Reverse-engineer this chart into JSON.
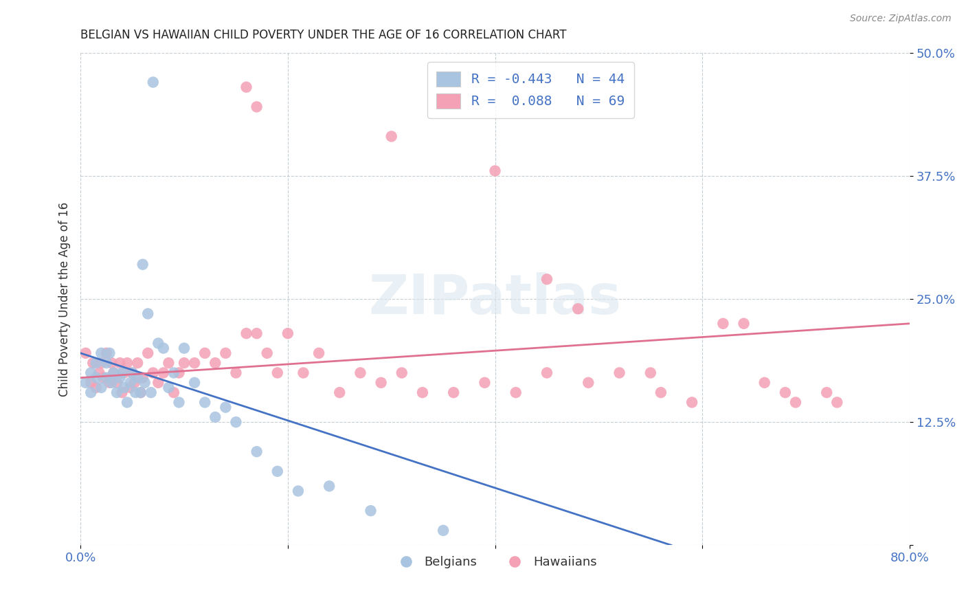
{
  "title": "BELGIAN VS HAWAIIAN CHILD POVERTY UNDER THE AGE OF 16 CORRELATION CHART",
  "source": "Source: ZipAtlas.com",
  "ylabel": "Child Poverty Under the Age of 16",
  "xlim": [
    0.0,
    0.8
  ],
  "ylim": [
    0.0,
    0.5
  ],
  "xticks": [
    0.0,
    0.2,
    0.4,
    0.6,
    0.8
  ],
  "xticklabels": [
    "0.0%",
    "",
    "",
    "",
    "80.0%"
  ],
  "yticks": [
    0.0,
    0.125,
    0.25,
    0.375,
    0.5
  ],
  "yticklabels": [
    "",
    "12.5%",
    "25.0%",
    "37.5%",
    "50.0%"
  ],
  "color_belgian": "#a8c4e0",
  "color_hawaiian": "#f4a0b5",
  "line_color_belgian": "#4472c4",
  "line_color_hawaiian": "#e07090",
  "watermark": "ZIPatlas",
  "belgian_line_x": [
    0.0,
    0.57
  ],
  "belgian_line_y": [
    0.195,
    0.0
  ],
  "hawaiian_line_x": [
    0.0,
    0.8
  ],
  "hawaiian_line_y": [
    0.17,
    0.225
  ],
  "belgian_x": [
    0.005,
    0.01,
    0.01,
    0.015,
    0.015,
    0.02,
    0.02,
    0.025,
    0.025,
    0.028,
    0.03,
    0.032,
    0.035,
    0.038,
    0.04,
    0.042,
    0.045,
    0.048,
    0.05,
    0.053,
    0.055,
    0.058,
    0.06,
    0.062,
    0.065,
    0.068,
    0.07,
    0.075,
    0.08,
    0.085,
    0.09,
    0.095,
    0.1,
    0.11,
    0.12,
    0.13,
    0.14,
    0.15,
    0.17,
    0.19,
    0.21,
    0.24,
    0.28,
    0.35
  ],
  "belgian_y": [
    0.165,
    0.155,
    0.175,
    0.185,
    0.17,
    0.195,
    0.16,
    0.185,
    0.17,
    0.195,
    0.165,
    0.175,
    0.155,
    0.17,
    0.175,
    0.16,
    0.145,
    0.165,
    0.175,
    0.155,
    0.17,
    0.155,
    0.285,
    0.165,
    0.235,
    0.155,
    0.47,
    0.205,
    0.2,
    0.16,
    0.175,
    0.145,
    0.2,
    0.165,
    0.145,
    0.13,
    0.14,
    0.125,
    0.095,
    0.075,
    0.055,
    0.06,
    0.035,
    0.015
  ],
  "hawaiian_x": [
    0.005,
    0.01,
    0.012,
    0.015,
    0.018,
    0.02,
    0.022,
    0.025,
    0.028,
    0.03,
    0.032,
    0.035,
    0.038,
    0.04,
    0.042,
    0.045,
    0.048,
    0.05,
    0.052,
    0.055,
    0.058,
    0.06,
    0.065,
    0.07,
    0.075,
    0.08,
    0.085,
    0.09,
    0.095,
    0.1,
    0.11,
    0.12,
    0.13,
    0.14,
    0.15,
    0.16,
    0.17,
    0.18,
    0.19,
    0.2,
    0.215,
    0.23,
    0.25,
    0.27,
    0.29,
    0.31,
    0.33,
    0.36,
    0.39,
    0.42,
    0.45,
    0.49,
    0.52,
    0.56,
    0.59,
    0.62,
    0.64,
    0.66,
    0.69,
    0.72,
    0.16,
    0.17,
    0.3,
    0.4,
    0.45,
    0.48,
    0.55,
    0.68,
    0.73
  ],
  "hawaiian_y": [
    0.195,
    0.165,
    0.185,
    0.16,
    0.175,
    0.185,
    0.17,
    0.195,
    0.165,
    0.185,
    0.175,
    0.165,
    0.185,
    0.155,
    0.175,
    0.185,
    0.16,
    0.175,
    0.165,
    0.185,
    0.155,
    0.17,
    0.195,
    0.175,
    0.165,
    0.175,
    0.185,
    0.155,
    0.175,
    0.185,
    0.185,
    0.195,
    0.185,
    0.195,
    0.175,
    0.215,
    0.215,
    0.195,
    0.175,
    0.215,
    0.175,
    0.195,
    0.155,
    0.175,
    0.165,
    0.175,
    0.155,
    0.155,
    0.165,
    0.155,
    0.175,
    0.165,
    0.175,
    0.155,
    0.145,
    0.225,
    0.225,
    0.165,
    0.145,
    0.155,
    0.465,
    0.445,
    0.415,
    0.38,
    0.27,
    0.24,
    0.175,
    0.155,
    0.145
  ]
}
